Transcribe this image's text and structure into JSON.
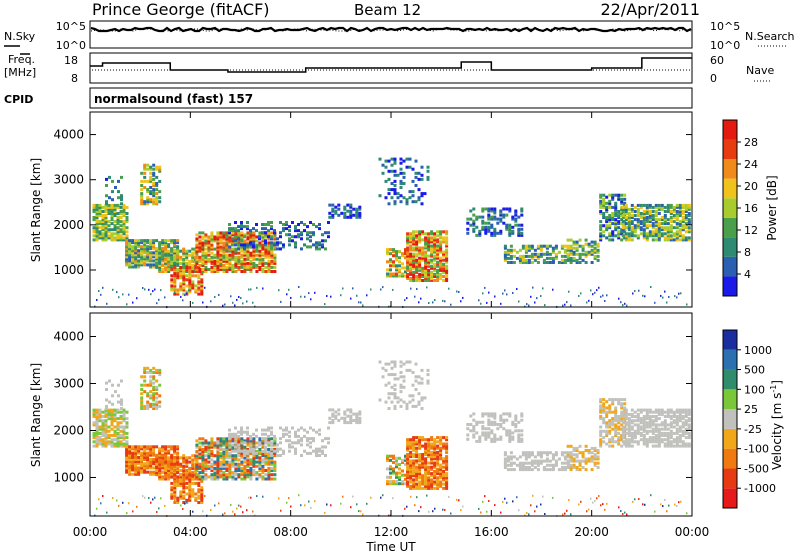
{
  "header": {
    "station": "Prince George (fitACF)",
    "beam": "Beam 12",
    "date": "22/Apr/2011"
  },
  "top_panels": {
    "nsky_label": "N.Sky",
    "nsearch_label": "N.Search",
    "freq_label_line1": "Freq.",
    "freq_label_line2": "[MHz]",
    "nave_label": "Nave",
    "cpid_label": "CPID",
    "cpid_value": "normalsound (fast) 157",
    "noise_ticks_left": [
      "10^5",
      "10^0"
    ],
    "noise_ticks_right": [
      "10^5",
      "10^0"
    ],
    "freq_ticks": [
      "18",
      "8"
    ],
    "nave_ticks": [
      "60",
      "0"
    ]
  },
  "time_axis_label": "Time UT",
  "colors": {
    "frame": "#000000",
    "power_scale": [
      "#1c1ae8",
      "#2a5fb2",
      "#2f8a72",
      "#4aa04a",
      "#a8cc2e",
      "#f0c21c",
      "#f08a1a",
      "#e63c10",
      "#e41a10"
    ],
    "velocity_scale": [
      "#1a2ea0",
      "#2c70b0",
      "#2f8c6c",
      "#7ac83a",
      "#c0c0bc",
      "#f0a81a",
      "#f07a10",
      "#e63a12",
      "#e61a1a"
    ]
  },
  "chart_data": [
    {
      "type": "heatmap",
      "name": "power-panel",
      "ylabel": "Slant Range [km]",
      "x_ticks": [
        "00:00",
        "04:00",
        "08:00",
        "12:00",
        "16:00",
        "20:00",
        "00:00"
      ],
      "x_tick_hours": [
        0,
        4,
        8,
        12,
        16,
        20,
        24
      ],
      "xlim": [
        0,
        24
      ],
      "ylim": [
        180,
        4500
      ],
      "y_ticks": [
        1000,
        2000,
        3000,
        4000
      ],
      "colorbar_label": "Power [dB]",
      "colorbar_ticks": [
        "4",
        "8",
        "12",
        "16",
        "20",
        "24",
        "28"
      ],
      "colorbar_range": [
        0,
        30
      ]
    },
    {
      "type": "heatmap",
      "name": "velocity-panel",
      "ylabel": "Slant Range [km]",
      "x_ticks": [
        "00:00",
        "04:00",
        "08:00",
        "12:00",
        "16:00",
        "20:00",
        "00:00"
      ],
      "x_tick_hours": [
        0,
        4,
        8,
        12,
        16,
        20,
        24
      ],
      "xlim": [
        0,
        24
      ],
      "ylim": [
        180,
        4500
      ],
      "y_ticks": [
        1000,
        2000,
        3000,
        4000
      ],
      "colorbar_label": "Velocity [m s",
      "colorbar_label_sup": "-1",
      "colorbar_label_end": "]",
      "colorbar_ticks": [
        "1000",
        "500",
        "100",
        "25",
        "-25",
        "-100",
        "-500",
        "-1000"
      ]
    }
  ]
}
